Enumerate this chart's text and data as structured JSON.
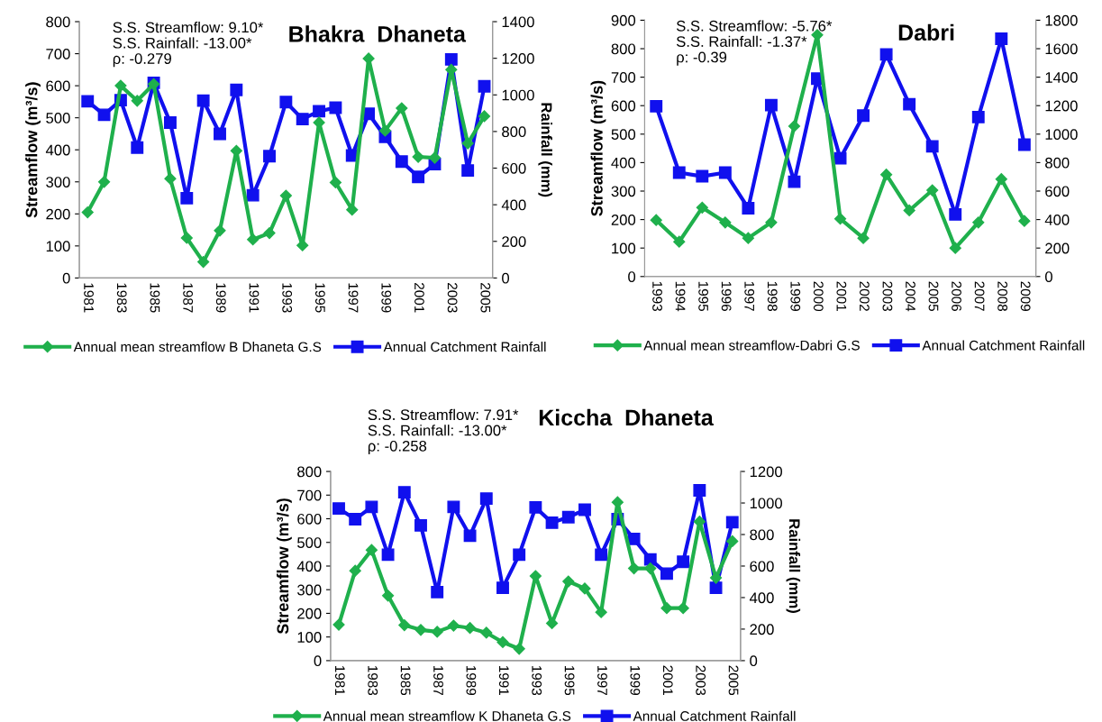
{
  "chart_data": [
    {
      "type": "line",
      "title": "Bhakra  Dhaneta",
      "ylabel": "Streamflow (m³/s)",
      "y2label": "Rainfall (mm)",
      "annotations": [
        "S.S. Streamflow: 9.10*",
        "S.S. Rainfall: -13.00*",
        "ρ: -0.279"
      ],
      "categories": [
        "1981",
        null,
        "1983",
        null,
        "1985",
        null,
        "1987",
        null,
        "1989",
        null,
        "1991",
        null,
        "1993",
        null,
        "1995",
        null,
        "1997",
        null,
        "1999",
        null,
        "2001",
        null,
        "2003",
        null,
        "2005"
      ],
      "series": [
        {
          "name": "Annual mean streamflow B Dhaneta G.S",
          "color": "#1fb04c",
          "marker": "diamond",
          "values": [
            205,
            300,
            600,
            553,
            605,
            310,
            125,
            50,
            148,
            397,
            120,
            140,
            257,
            102,
            485,
            298,
            213,
            685,
            460,
            530,
            378,
            375,
            650,
            420,
            505
          ]
        },
        {
          "name": "Annual Catchment Rainfall",
          "color": "#1010ee",
          "marker": "square",
          "axis": "y2",
          "values": [
            965,
            891,
            971,
            712,
            1066,
            849,
            436,
            969,
            787,
            1027,
            452,
            665,
            961,
            868,
            911,
            930,
            669,
            897,
            771,
            636,
            552,
            622,
            1194,
            587,
            1047
          ]
        }
      ],
      "ylim": [
        0,
        800
      ],
      "yticks": [
        0,
        100,
        200,
        300,
        400,
        500,
        600,
        700,
        800
      ],
      "y2lim": [
        0,
        1400
      ],
      "y2ticks": [
        0,
        200,
        400,
        600,
        800,
        1000,
        1200,
        1400
      ],
      "grid": false,
      "legend": "bottom"
    },
    {
      "type": "line",
      "title": "Dabri",
      "ylabel": "Streamflow (m³/s)",
      "annotations": [
        "S.S. Streamflow: -5.76*",
        "S.S. Rainfall: -1.37*",
        "ρ: -0.39"
      ],
      "categories": [
        "1993",
        "1994",
        "1995",
        "1996",
        "1997",
        "1998",
        "1999",
        "2000",
        "2001",
        "2002",
        "2003",
        "2004",
        "2005",
        "2006",
        "2007",
        "2008",
        "2009"
      ],
      "series": [
        {
          "name": "Annual mean streamflow-Dabri G.S",
          "color": "#1fb04c",
          "marker": "diamond",
          "values": [
            198,
            122,
            242,
            190,
            135,
            190,
            528,
            848,
            203,
            135,
            358,
            232,
            303,
            100,
            190,
            342,
            195
          ]
        },
        {
          "name": "Annual Catchment Rainfall",
          "color": "#1010ee",
          "marker": "square",
          "axis": "y2",
          "values": [
            1196,
            730,
            704,
            730,
            480,
            1204,
            666,
            1390,
            830,
            1130,
            1560,
            1210,
            914,
            436,
            1120,
            1670,
            926
          ]
        }
      ],
      "ylim": [
        0,
        900
      ],
      "yticks": [
        0,
        100,
        200,
        300,
        400,
        500,
        600,
        700,
        800,
        900
      ],
      "y2lim": [
        0,
        1800
      ],
      "y2ticks": [
        0,
        200,
        400,
        600,
        800,
        1000,
        1200,
        1400,
        1600,
        1800
      ],
      "grid": false,
      "legend": "bottom"
    },
    {
      "type": "line",
      "title": "Kiccha  Dhaneta",
      "ylabel": "Streamflow (m³/s)",
      "y2label": "Rainfall (mm)",
      "annotations": [
        "S.S. Streamflow: 7.91*",
        "S.S. Rainfall: -13.00*",
        "ρ: -0.258"
      ],
      "categories": [
        "1981",
        null,
        "1983",
        null,
        "1985",
        null,
        "1987",
        null,
        "1989",
        null,
        "1991",
        null,
        "1993",
        null,
        "1995",
        null,
        "1997",
        null,
        "1999",
        null,
        "2001",
        null,
        "2003",
        null,
        "2005"
      ],
      "series": [
        {
          "name": "Annual mean streamflow K Dhaneta G.S",
          "color": "#1fb04c",
          "marker": "diamond",
          "values": [
            152,
            380,
            468,
            275,
            150,
            130,
            122,
            148,
            138,
            118,
            78,
            50,
            358,
            158,
            335,
            305,
            205,
            670,
            390,
            390,
            222,
            222,
            588,
            350,
            505
          ]
        },
        {
          "name": "Annual Catchment Rainfall",
          "color": "#1010ee",
          "marker": "square",
          "axis": "y2",
          "values": [
            965,
            897,
            975,
            672,
            1068,
            858,
            435,
            975,
            792,
            1028,
            462,
            672,
            972,
            875,
            910,
            957,
            672,
            897,
            772,
            642,
            552,
            627,
            1080,
            462,
            878
          ]
        }
      ],
      "ylim": [
        0,
        800
      ],
      "yticks": [
        0,
        100,
        200,
        300,
        400,
        500,
        600,
        700,
        800
      ],
      "y2lim": [
        0,
        1200
      ],
      "y2ticks": [
        0,
        200,
        400,
        600,
        800,
        1000,
        1200
      ],
      "grid": false,
      "legend": "bottom"
    }
  ]
}
